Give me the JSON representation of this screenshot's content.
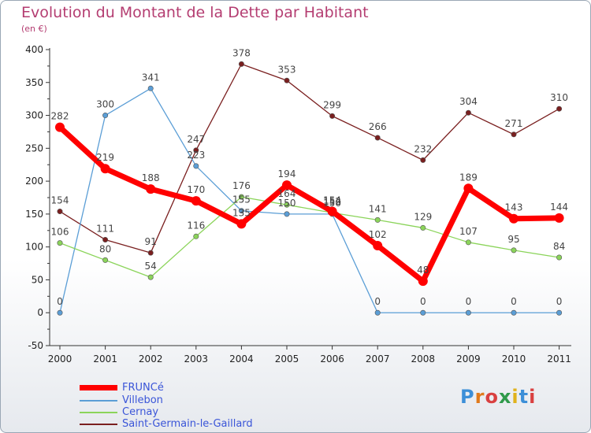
{
  "header": {
    "title": "Evolution du Montant de la Dette par Habitant",
    "subtitle": "(en €)"
  },
  "logo": {
    "text": "Proxiti",
    "colors": [
      "#3c8fd8",
      "#e07a1c",
      "#d94040",
      "#2f9a4a",
      "#e0b21c",
      "#3c8fd8",
      "#d94040"
    ]
  },
  "chart_data": {
    "type": "line",
    "categories": [
      "2000",
      "2001",
      "2002",
      "2003",
      "2004",
      "2005",
      "2006",
      "2007",
      "2008",
      "2009",
      "2010",
      "2011"
    ],
    "ylim": [
      -50,
      400
    ],
    "yticks": [
      -50,
      0,
      50,
      100,
      150,
      200,
      250,
      300,
      350,
      400
    ],
    "grid": false,
    "legend_position": "bottom-left",
    "series": [
      {
        "name": "FRUNCé",
        "values": [
          282,
          219,
          188,
          170,
          135,
          194,
          154,
          102,
          48,
          189,
          143,
          144
        ],
        "color": "#ff0000",
        "width": 7,
        "labels": [
          "282",
          "219",
          "188",
          "170",
          "135",
          "194",
          "154",
          "102",
          "48",
          "189",
          "143",
          "144"
        ]
      },
      {
        "name": "Villebon",
        "values": [
          0,
          300,
          341,
          223,
          155,
          150,
          150,
          0,
          0,
          0,
          0,
          0
        ],
        "color": "#5b9ed6",
        "width": 1.3,
        "labels": [
          "0",
          "300",
          "341",
          "223",
          "155",
          "150",
          "150",
          "0",
          "0",
          "0",
          "0",
          "0"
        ]
      },
      {
        "name": "Cernay",
        "values": [
          106,
          80,
          54,
          116,
          176,
          164,
          152,
          141,
          129,
          107,
          95,
          84
        ],
        "color": "#8bd45a",
        "width": 1.3,
        "labels": [
          "106",
          "80",
          "54",
          "116",
          "176",
          "164",
          "152",
          "141",
          "129",
          "107",
          "95",
          "84"
        ]
      },
      {
        "name": "Saint-Germain-le-Gaillard",
        "values": [
          154,
          111,
          91,
          247,
          378,
          353,
          299,
          266,
          232,
          304,
          271,
          310
        ],
        "color": "#7a1f1f",
        "width": 1.3,
        "labels": [
          "154",
          "111",
          "91",
          "247",
          "378",
          "353",
          "299",
          "266",
          "232",
          "304",
          "271",
          "310"
        ]
      }
    ]
  }
}
